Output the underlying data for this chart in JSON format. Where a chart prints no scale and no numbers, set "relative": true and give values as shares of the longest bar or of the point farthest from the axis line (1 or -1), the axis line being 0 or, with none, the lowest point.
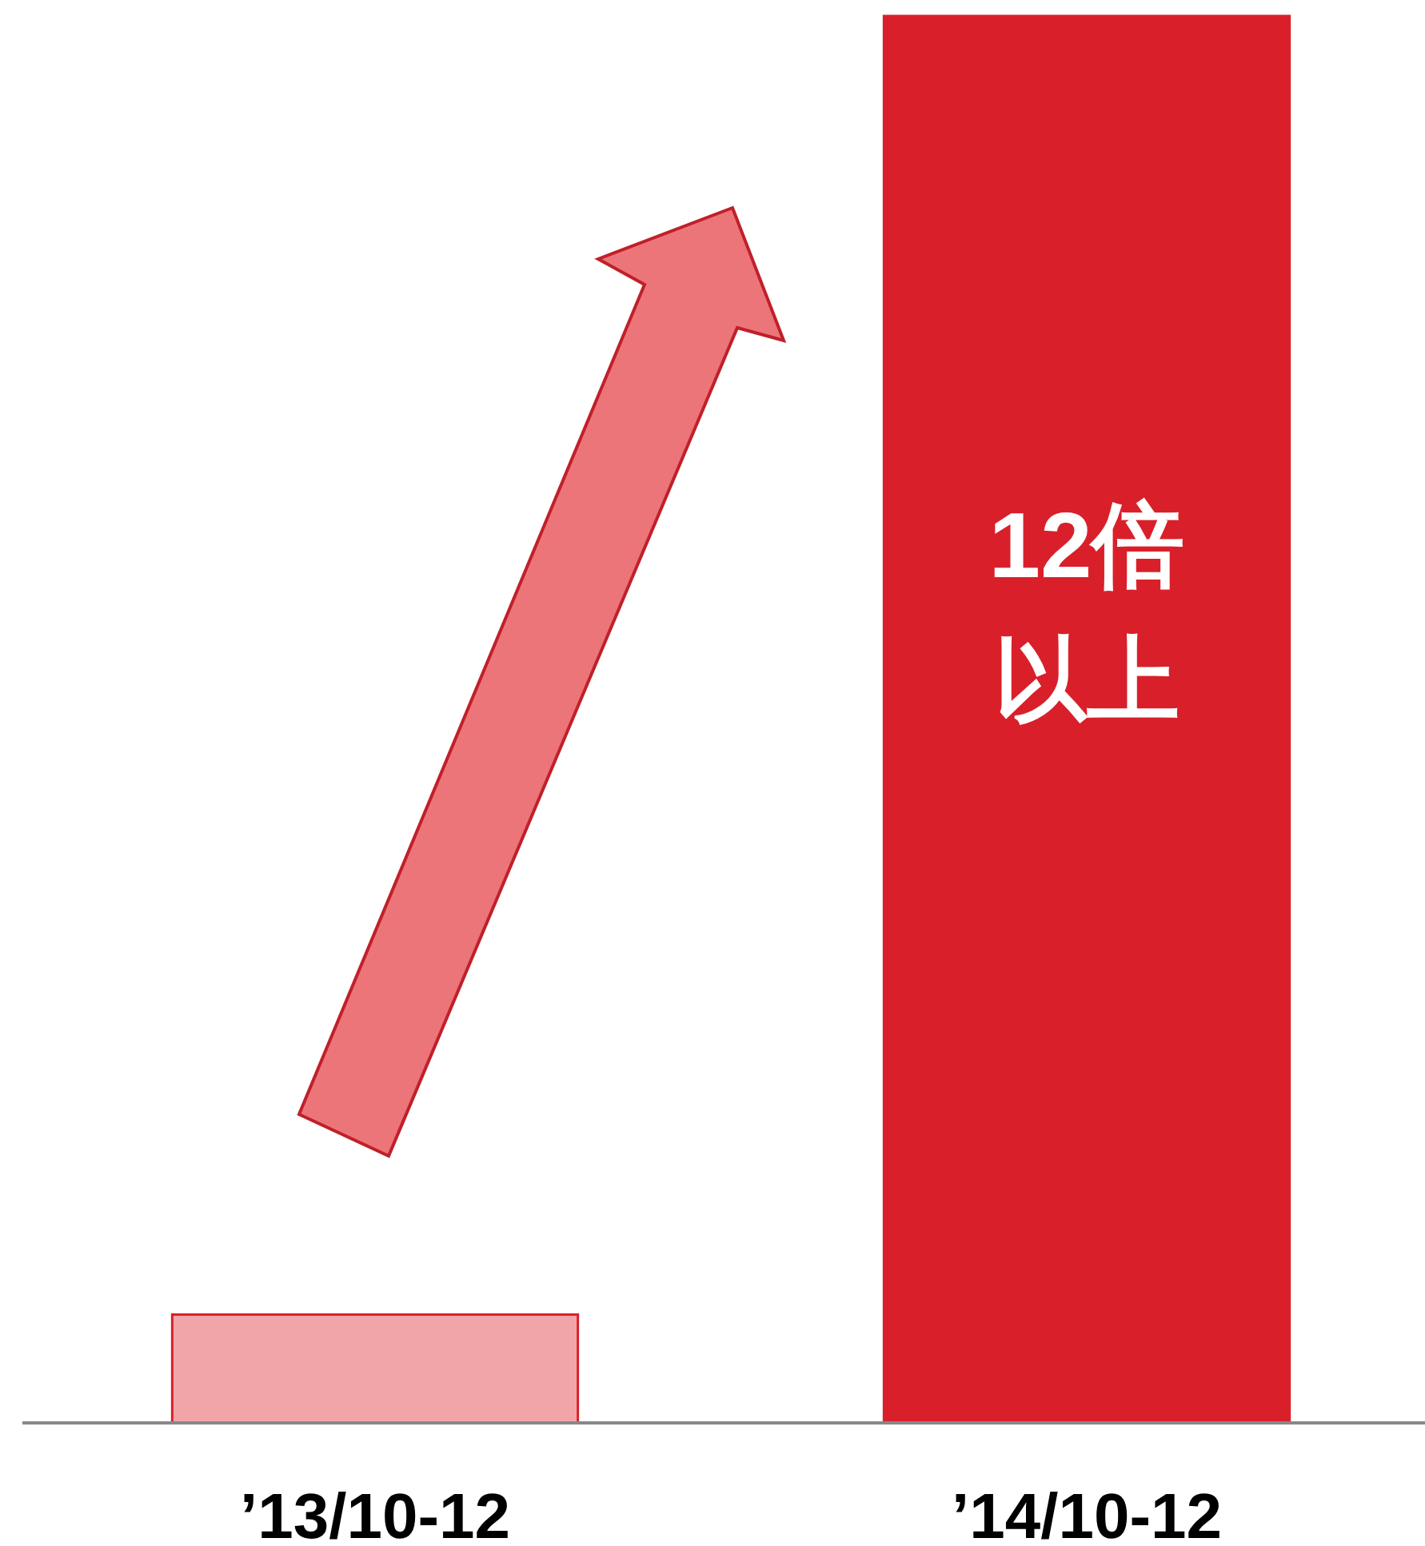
{
  "chart_data": {
    "type": "bar",
    "relative": true,
    "categories": [
      "’13/10-12",
      "’14/10-12"
    ],
    "values": [
      0.077,
      1
    ],
    "colors": [
      "#f2a5a8",
      "#d9202a"
    ],
    "annotations": [
      "12倍以上"
    ]
  }
}
